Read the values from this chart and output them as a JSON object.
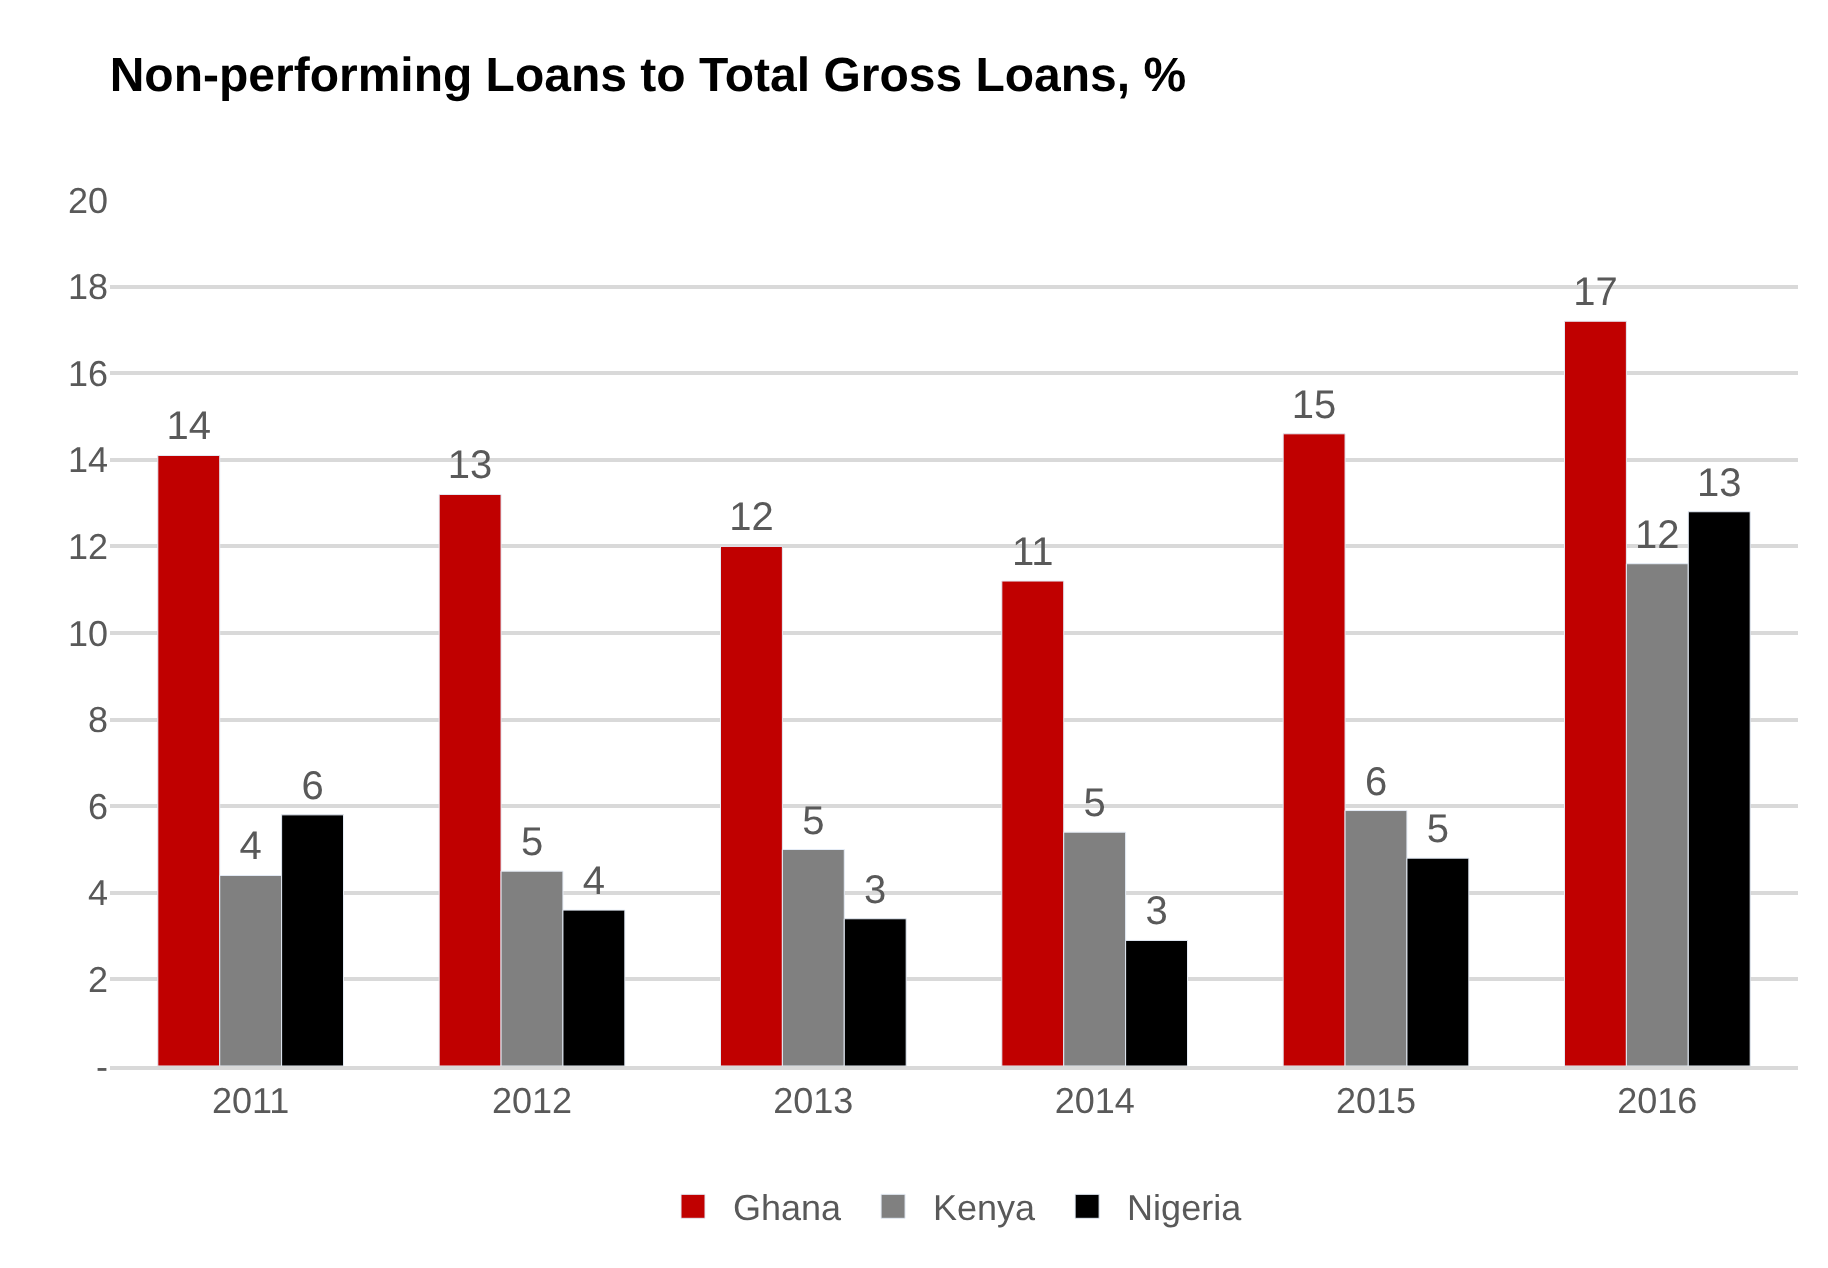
{
  "chart_data": {
    "type": "bar",
    "title": "Non-performing Loans to Total Gross Loans, %",
    "categories": [
      "2011",
      "2012",
      "2013",
      "2014",
      "2015",
      "2016"
    ],
    "series": [
      {
        "name": "Ghana",
        "color": "#c00000",
        "values": [
          14.1,
          13.2,
          12.0,
          11.2,
          14.6,
          17.2
        ],
        "value_labels": [
          "14",
          "13",
          "12",
          "11",
          "15",
          "17"
        ]
      },
      {
        "name": "Kenya",
        "color": "#808080",
        "values": [
          4.4,
          4.5,
          5.0,
          5.4,
          5.9,
          11.6
        ],
        "value_labels": [
          "4",
          "5",
          "5",
          "5",
          "6",
          "12"
        ]
      },
      {
        "name": "Nigeria",
        "color": "#000000",
        "values": [
          5.8,
          3.6,
          3.4,
          2.9,
          4.8,
          12.8
        ],
        "value_labels": [
          "6",
          "4",
          "3",
          "3",
          "5",
          "13"
        ]
      }
    ],
    "ylim": [
      0,
      20
    ],
    "yticks": [
      {
        "value": 0,
        "label": "-"
      },
      2,
      4,
      6,
      8,
      10,
      12,
      14,
      16,
      18,
      20
    ],
    "grid": "y",
    "legend": "bottom"
  }
}
